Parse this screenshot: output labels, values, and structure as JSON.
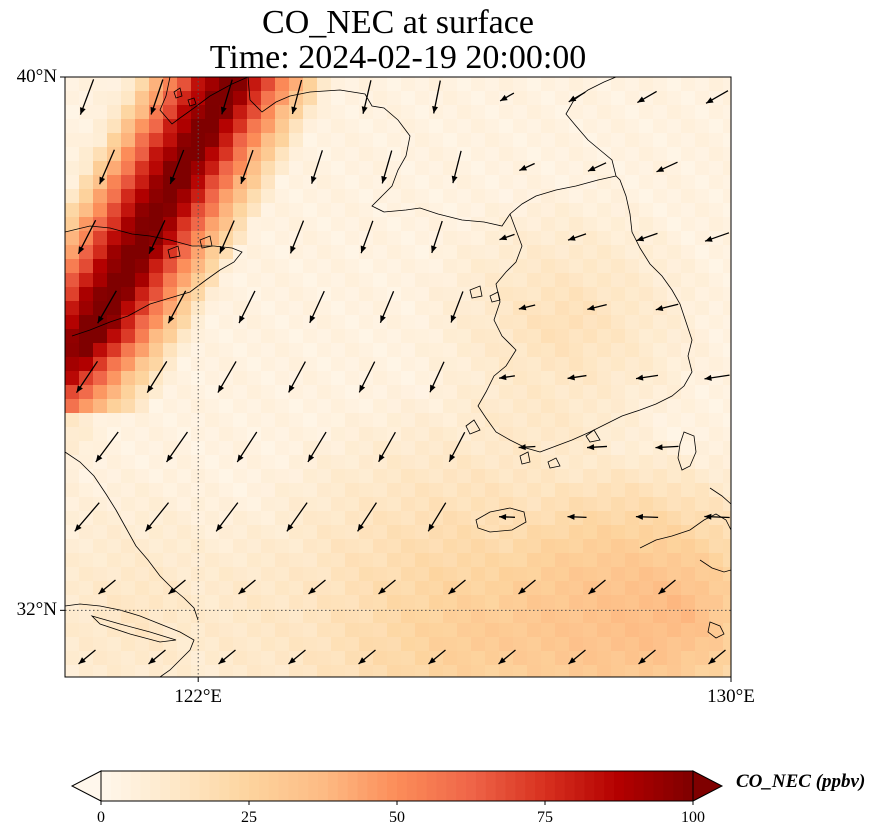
{
  "title": {
    "line1": "CO_NEC at surface",
    "line2": "Time: 2024-02-19 20:00:00"
  },
  "map": {
    "lat_range_deg": [
      31,
      40
    ],
    "lon_range_deg": [
      120,
      130
    ],
    "lat_ticks": [
      {
        "value": 40,
        "label": "40°N"
      },
      {
        "value": 32,
        "label": "32°N"
      }
    ],
    "lon_ticks": [
      {
        "value": 122,
        "label": "122°E"
      },
      {
        "value": 130,
        "label": "130°E"
      }
    ],
    "gridlines": "dotted at 122°E and 32°N",
    "field": "CO_NEC concentration (ppbv) with wind vectors",
    "coastlines": true
  },
  "colorbar": {
    "label": "CO_NEC (ppbv)",
    "min": 0,
    "max": 100,
    "extend": "both",
    "ticks": [
      {
        "value": 0,
        "label": "0"
      },
      {
        "value": 25,
        "label": "25"
      },
      {
        "value": 50,
        "label": "50"
      },
      {
        "value": 75,
        "label": "75"
      },
      {
        "value": 100,
        "label": "100"
      }
    ],
    "colormap": "OrRd",
    "colors": [
      "#fff7ec",
      "#fee8c8",
      "#fdd49e",
      "#fdbb84",
      "#fc8d59",
      "#ef6548",
      "#d7301f",
      "#b30000",
      "#7f0000"
    ]
  },
  "colors": {
    "wind_vector": "#000000",
    "coastline": "#000000",
    "gridline": "#555555"
  }
}
